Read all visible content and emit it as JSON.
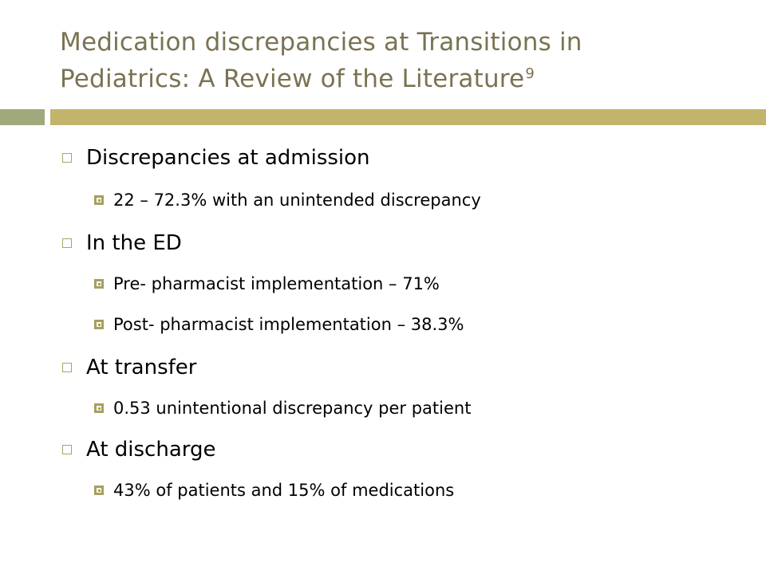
{
  "slide": {
    "title_line1": "Medication discrepancies at Transitions in",
    "title_line2": "Pediatrics: A Review of the Literature",
    "title_superscript": "9",
    "bullets": [
      {
        "text": "Discrepancies at admission",
        "subs": [
          "22 – 72.3% with an unintended discrepancy"
        ]
      },
      {
        "text": "In the ED",
        "subs": [
          "Pre- pharmacist implementation – 71%",
          "Post- pharmacist implementation – 38.3%"
        ]
      },
      {
        "text": "At transfer",
        "subs": [
          "0.53 unintentional discrepancy per patient"
        ]
      },
      {
        "text": "At discharge",
        "subs": [
          "43% of patients and 15% of medications"
        ]
      }
    ],
    "colors": {
      "title": "#7a7352",
      "accent_bar": "#c3b46b",
      "accent_bar_left": "#9faa7c",
      "bullet": "#a79f5c"
    }
  }
}
